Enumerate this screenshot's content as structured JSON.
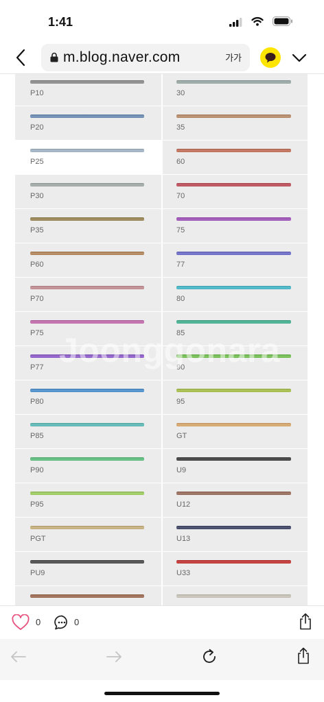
{
  "status_bar": {
    "time": "1:41"
  },
  "browser": {
    "url": "m.blog.naver.com",
    "text_size_button": "가가"
  },
  "swatches": [
    {
      "left": {
        "label": "P10",
        "color": "#8d8d8d"
      },
      "right": {
        "label": "30",
        "color": "#9aaba7"
      }
    },
    {
      "left": {
        "label": "P20",
        "color": "#6b8db5"
      },
      "right": {
        "label": "35",
        "color": "#ba8c6a"
      }
    },
    {
      "left": {
        "label": "P25",
        "color": "#a3b6c9",
        "highlight": true
      },
      "right": {
        "label": "60",
        "color": "#c47058"
      }
    },
    {
      "left": {
        "label": "P30",
        "color": "#a2aca8"
      },
      "right": {
        "label": "70",
        "color": "#c04e5a"
      }
    },
    {
      "left": {
        "label": "P35",
        "color": "#9a8653"
      },
      "right": {
        "label": "75",
        "color": "#a052bb"
      }
    },
    {
      "left": {
        "label": "P60",
        "color": "#b4875b"
      },
      "right": {
        "label": "77",
        "color": "#6c6ccc"
      }
    },
    {
      "left": {
        "label": "P70",
        "color": "#c48e92"
      },
      "right": {
        "label": "80",
        "color": "#45b9ca"
      }
    },
    {
      "left": {
        "label": "P75",
        "color": "#c46cae"
      },
      "right": {
        "label": "85",
        "color": "#43b291"
      }
    },
    {
      "left": {
        "label": "P77",
        "color": "#8e5ccc"
      },
      "right": {
        "label": "90",
        "color": "#72c150"
      }
    },
    {
      "left": {
        "label": "P80",
        "color": "#4b91cf"
      },
      "right": {
        "label": "95",
        "color": "#a8c14a"
      }
    },
    {
      "left": {
        "label": "P85",
        "color": "#5cbcb9"
      },
      "right": {
        "label": "GT",
        "color": "#dba96b"
      }
    },
    {
      "left": {
        "label": "P90",
        "color": "#5dc07f"
      },
      "right": {
        "label": "U9",
        "color": "#3e3e3e"
      }
    },
    {
      "left": {
        "label": "P95",
        "color": "#9fcf5f"
      },
      "right": {
        "label": "U12",
        "color": "#9a6d5c"
      }
    },
    {
      "left": {
        "label": "PGT",
        "color": "#cbb27d"
      },
      "right": {
        "label": "U13",
        "color": "#3d4466"
      }
    },
    {
      "left": {
        "label": "PU9",
        "color": "#4b4b4b"
      },
      "right": {
        "label": "U33",
        "color": "#c63432"
      }
    },
    {
      "left": {
        "label": "",
        "color": "#a06b52"
      },
      "right": {
        "label": "",
        "color": "#cbc6ba"
      }
    }
  ],
  "watermark": "Joonggonara",
  "post_actions": {
    "like_count": "0",
    "comment_count": "0"
  },
  "icons": {
    "status": [
      "signal-icon",
      "wifi-icon",
      "battery-icon"
    ],
    "nav": [
      "chevron-left-icon",
      "lock-icon",
      "kakaotalk-icon",
      "chevron-down-icon"
    ],
    "actions": [
      "heart-icon",
      "comment-icon",
      "share-icon"
    ],
    "toolbar": [
      "arrow-back-icon",
      "arrow-forward-icon",
      "reload-icon",
      "share-icon"
    ]
  },
  "colors": {
    "like": "#e8507e",
    "kakao": "#fee500",
    "swatch_bg": "#ececec",
    "disabled_arrow": "#c4c4c4"
  }
}
